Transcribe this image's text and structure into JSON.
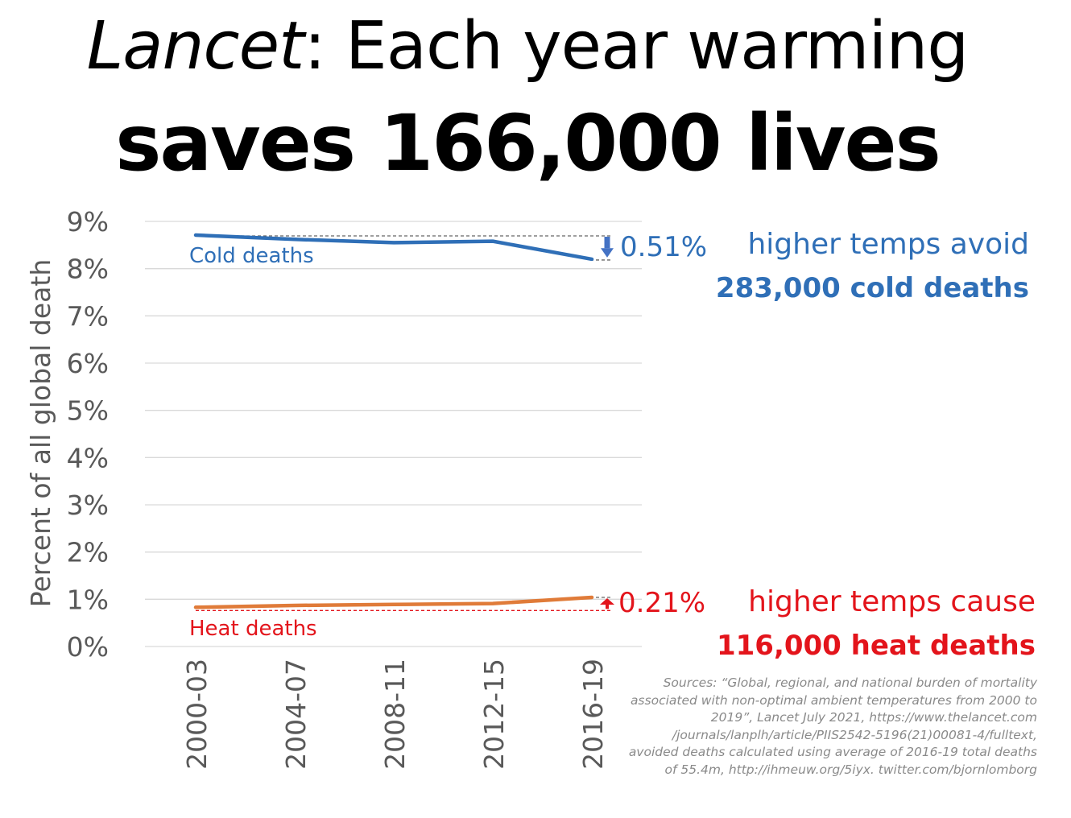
{
  "title": {
    "italic_part": "Lancet",
    "line1_rest": ": Each year warming",
    "line2": "saves 166,000 lives"
  },
  "colors": {
    "cold": "#2F6FB7",
    "heat_line": "#E07B39",
    "heat_text": "#E3141B",
    "grid": "#d9d9d9",
    "axis_text": "#595959",
    "dashed": "#666666",
    "arrow_cold": "#4472C4",
    "arrow_heat": "#E3141B"
  },
  "chart_data": {
    "type": "line",
    "title": "",
    "xlabel": "",
    "ylabel": "Percent of all global death",
    "categories": [
      "2000-03",
      "2004-07",
      "2008-11",
      "2012-15",
      "2016-19"
    ],
    "yticks": [
      "0%",
      "1%",
      "2%",
      "3%",
      "4%",
      "5%",
      "6%",
      "7%",
      "8%",
      "9%"
    ],
    "ylim": [
      0,
      9
    ],
    "grid": true,
    "series": [
      {
        "name": "Cold deaths",
        "values": [
          8.71,
          8.62,
          8.55,
          8.58,
          8.2
        ]
      },
      {
        "name": "Heat deaths",
        "values": [
          0.83,
          0.87,
          0.89,
          0.91,
          1.04
        ]
      }
    ],
    "annotations": {
      "cold_change": "0.51%",
      "heat_change": "0.21%"
    }
  },
  "annotations": {
    "cold_line1": "higher temps avoid",
    "cold_line2": "283,000 cold deaths",
    "heat_line1": "higher temps cause",
    "heat_line2": "116,000 heat deaths"
  },
  "sources": [
    "Sources: “Global, regional, and national burden of mortality",
    "associated with non-optimal ambient temperatures from 2000 to",
    "2019”, Lancet July 2021, https://www.thelancet.com",
    "/journals/lanplh/article/PIIS2542-5196(21)00081-4/fulltext,",
    "avoided deaths calculated using average of 2016-19 total deaths",
    "of 55.4m, http://ihmeuw.org/5iyx. twitter.com/bjornlomborg"
  ]
}
